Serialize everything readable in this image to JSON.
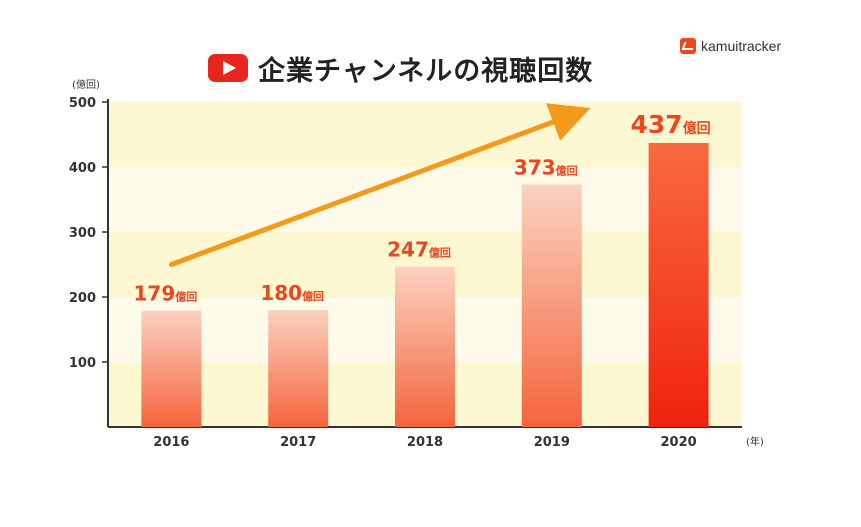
{
  "title": "企業チャンネルの視聴回数",
  "logo_text": "kamuitracker",
  "colors": {
    "title": "#222222",
    "label": "#e8471f",
    "arrow": "#f39a1c",
    "band_a": "#fdf8d2",
    "band_b": "#fefbea",
    "bar_top": "#fbd2c0",
    "bar_bottom": "#f4643d",
    "bar_highlight_top": "#f86a3f",
    "bar_highlight_bottom": "#f0220f",
    "axis": "#333333"
  },
  "chart_data": {
    "type": "bar",
    "title": "企業チャンネルの視聴回数",
    "y_unit": "(億回)",
    "x_unit": "(年)",
    "categories": [
      "2016",
      "2017",
      "2018",
      "2019",
      "2020"
    ],
    "values": [
      179,
      180,
      247,
      373,
      437
    ],
    "value_labels": [
      "179",
      "180",
      "247",
      "373",
      "437"
    ],
    "value_suffix": "億回",
    "ylim": [
      0,
      500
    ],
    "yticks": [
      100,
      200,
      300,
      400,
      500
    ],
    "highlight_index": 4,
    "trend_arrow": true,
    "grid": false
  }
}
